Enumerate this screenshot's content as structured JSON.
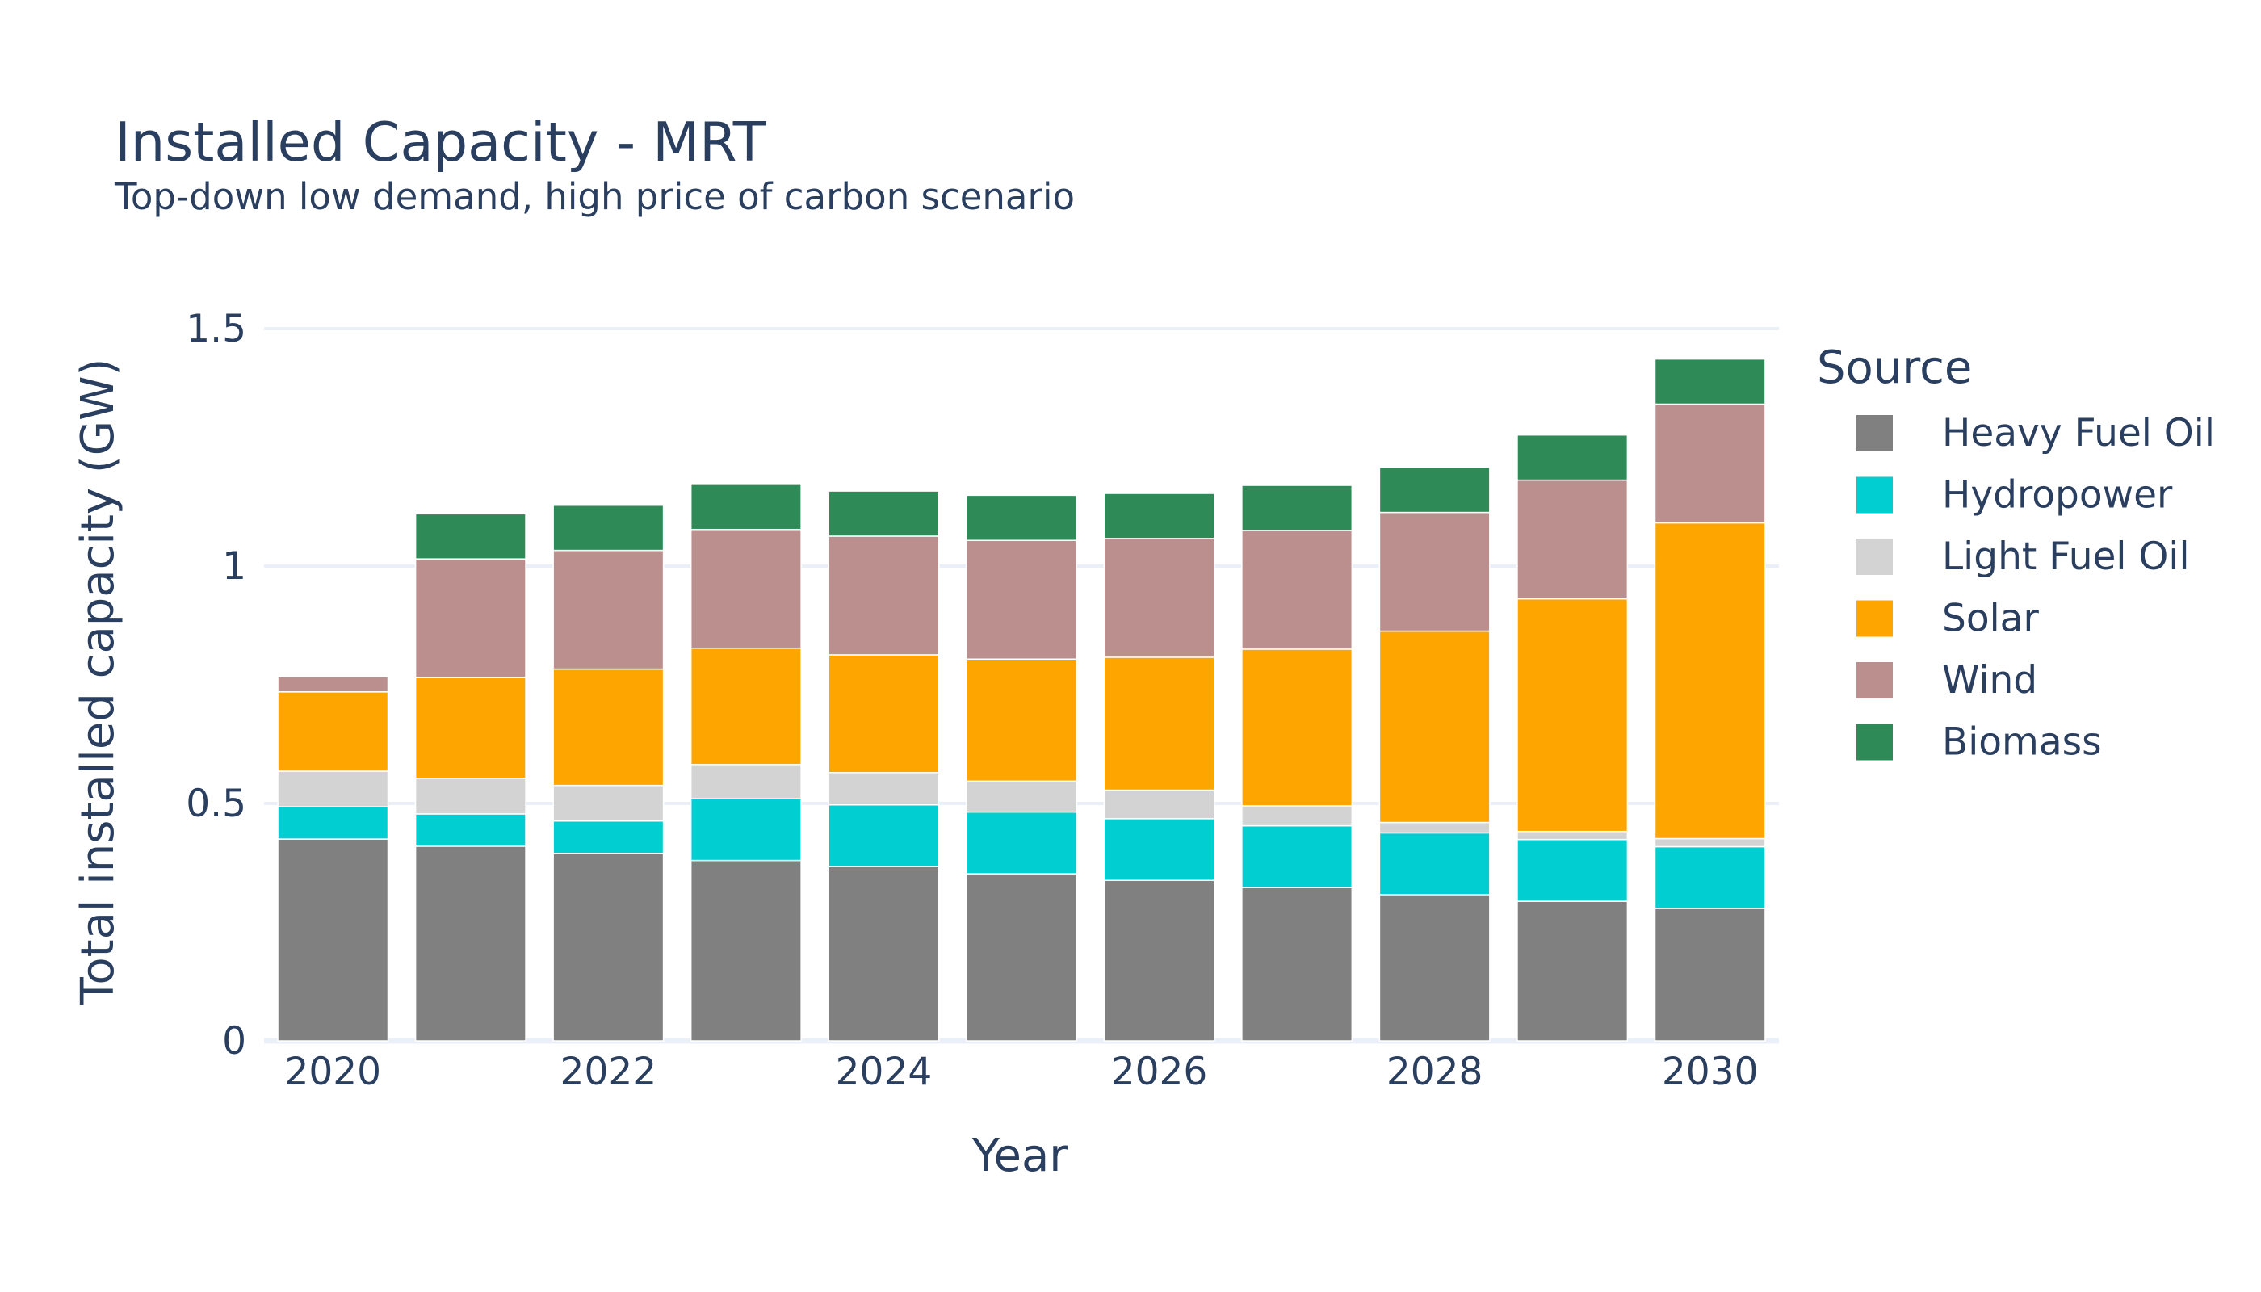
{
  "chart_data": {
    "type": "bar",
    "stacked": true,
    "title": "Installed Capacity - MRT",
    "subtitle": "Top-down low demand, high price of carbon scenario",
    "xlabel": "Year",
    "ylabel": "Total installed capacity (GW)",
    "ylim": [
      0,
      1.5
    ],
    "grid": true,
    "legend_title": "Source",
    "legend_position": "right",
    "categories": [
      2020,
      2021,
      2022,
      2023,
      2024,
      2025,
      2026,
      2027,
      2028,
      2029,
      2030
    ],
    "x_ticks": [
      {
        "value": 2020,
        "label": "2020"
      },
      {
        "value": 2022,
        "label": "2022"
      },
      {
        "value": 2024,
        "label": "2024"
      },
      {
        "value": 2026,
        "label": "2026"
      },
      {
        "value": 2028,
        "label": "2028"
      },
      {
        "value": 2030,
        "label": "2030"
      }
    ],
    "y_ticks": [
      {
        "value": 0,
        "label": "0"
      },
      {
        "value": 0.5,
        "label": "0.5"
      },
      {
        "value": 1,
        "label": "1"
      },
      {
        "value": 1.5,
        "label": "1.5"
      }
    ],
    "series": [
      {
        "name": "Heavy Fuel Oil",
        "color": "#808080",
        "values": [
          0.425,
          0.41,
          0.395,
          0.38,
          0.367,
          0.352,
          0.338,
          0.323,
          0.308,
          0.294,
          0.279
        ]
      },
      {
        "name": "Hydropower",
        "color": "#00ced1",
        "values": [
          0.068,
          0.068,
          0.068,
          0.13,
          0.13,
          0.13,
          0.13,
          0.13,
          0.13,
          0.13,
          0.13
        ]
      },
      {
        "name": "Light Fuel Oil",
        "color": "#d3d3d3",
        "values": [
          0.075,
          0.075,
          0.075,
          0.072,
          0.068,
          0.065,
          0.06,
          0.042,
          0.022,
          0.017,
          0.017
        ]
      },
      {
        "name": "Solar",
        "color": "#ffa500",
        "values": [
          0.167,
          0.212,
          0.245,
          0.245,
          0.248,
          0.257,
          0.28,
          0.33,
          0.403,
          0.49,
          0.665
        ]
      },
      {
        "name": "Wind",
        "color": "#bc8f8f",
        "values": [
          0.032,
          0.25,
          0.25,
          0.25,
          0.25,
          0.25,
          0.25,
          0.25,
          0.25,
          0.25,
          0.25
        ]
      },
      {
        "name": "Biomass",
        "color": "#2e8b57",
        "values": [
          0,
          0.095,
          0.095,
          0.095,
          0.095,
          0.095,
          0.095,
          0.095,
          0.095,
          0.095,
          0.095
        ]
      }
    ]
  }
}
